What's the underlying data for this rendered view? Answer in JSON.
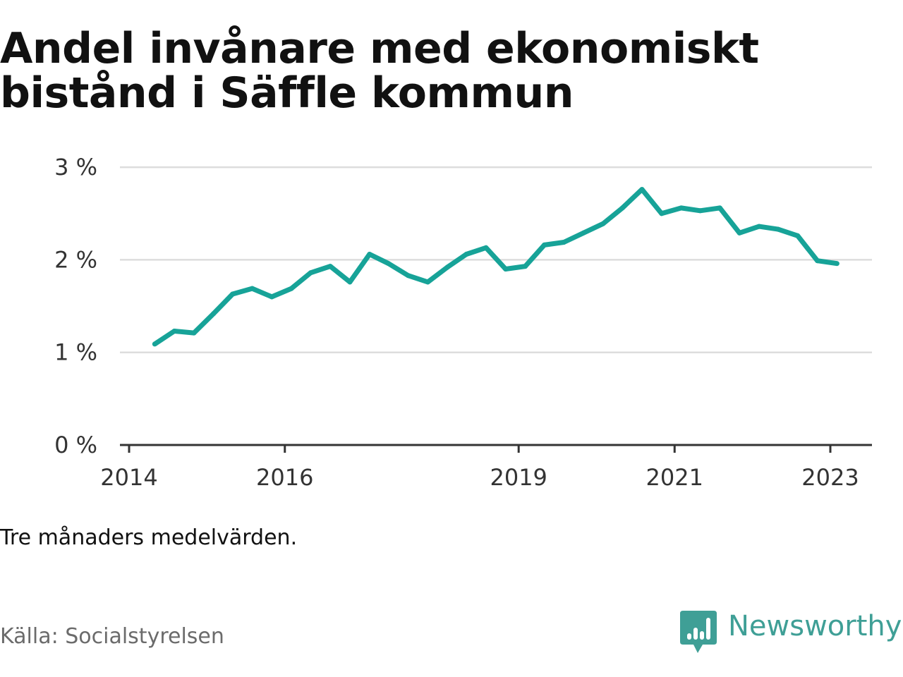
{
  "title": "Andel invånare med ekonomiskt bistånd i Säffle kommun",
  "note": "Tre månaders medelvärden.",
  "source": "Källa: Socialstyrelsen",
  "brand": {
    "name": "Newsworthy",
    "color": "#3f9f96",
    "logo_icon": "bar-chart-icon"
  },
  "colors": {
    "line": "#17a398",
    "grid": "#dddddd",
    "axis": "#333333"
  },
  "chart_data": {
    "type": "line",
    "title": "Andel invånare med ekonomiskt bistånd i Säffle kommun",
    "xlabel": "",
    "ylabel": "",
    "ylim": [
      0,
      3
    ],
    "yticks": [
      "0 %",
      "1 %",
      "2 %",
      "3 %"
    ],
    "xticks": [
      "2014",
      "2016",
      "2019",
      "2021",
      "2023"
    ],
    "grid": true,
    "x": [
      "2014-05",
      "2014-08",
      "2014-11",
      "2015-02",
      "2015-05",
      "2015-08",
      "2015-11",
      "2016-02",
      "2016-05",
      "2016-08",
      "2016-11",
      "2017-02",
      "2017-05",
      "2017-08",
      "2017-11",
      "2018-02",
      "2018-05",
      "2018-08",
      "2018-11",
      "2019-02",
      "2019-05",
      "2019-08",
      "2019-11",
      "2020-02",
      "2020-05",
      "2020-08",
      "2020-11",
      "2021-02",
      "2021-05",
      "2021-08",
      "2021-11",
      "2022-02",
      "2022-05",
      "2022-08",
      "2022-11",
      "2023-02"
    ],
    "series": [
      {
        "values": [
          1.09,
          1.23,
          1.21,
          1.42,
          1.63,
          1.69,
          1.6,
          1.69,
          1.86,
          1.93,
          1.76,
          2.06,
          1.96,
          1.83,
          1.76,
          1.92,
          2.06,
          2.13,
          1.9,
          1.93,
          2.16,
          2.19,
          2.29,
          2.39,
          2.56,
          2.76,
          2.5,
          2.56,
          2.53,
          2.56,
          2.29,
          2.36,
          2.33,
          2.26,
          1.99,
          1.96
        ]
      }
    ]
  }
}
